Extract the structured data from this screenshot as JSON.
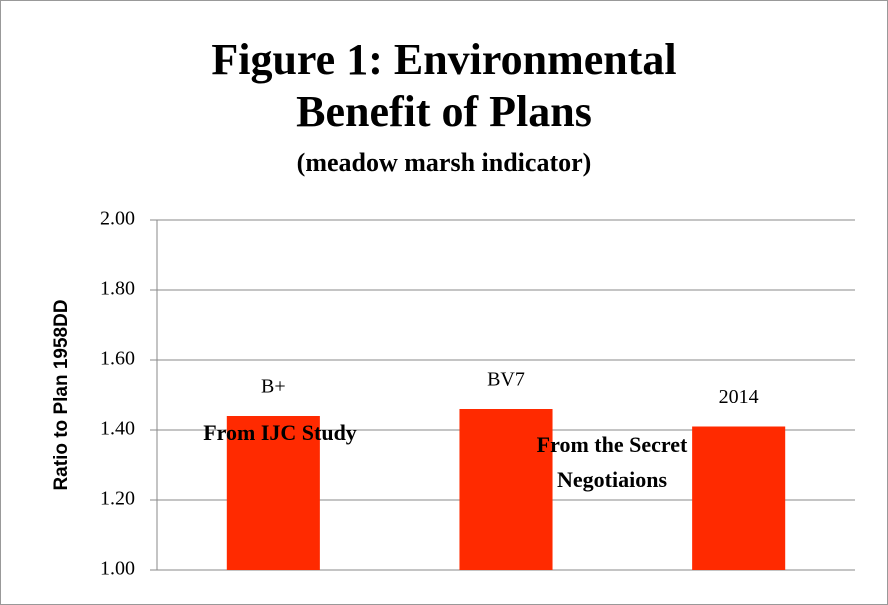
{
  "chart_data": {
    "type": "bar",
    "title": [
      "Figure 1: Environmental",
      "Benefit of Plans"
    ],
    "subtitle": "(meadow marsh indicator)",
    "y_label": "Ratio to Plan 1958DD",
    "categories": [
      "B+",
      "BV7",
      "2014"
    ],
    "values": [
      1.44,
      1.46,
      1.41
    ],
    "color": "#ff2a00",
    "ylim": [
      1.0,
      2.0
    ],
    "yticks": [
      {
        "value": 1.0,
        "label": "1.00"
      },
      {
        "value": 1.2,
        "label": "1.20"
      },
      {
        "value": 1.4,
        "label": "1.40"
      },
      {
        "value": 1.6,
        "label": "1.60"
      },
      {
        "value": 1.8,
        "label": "1.80"
      },
      {
        "value": 2.0,
        "label": "2.00"
      }
    ],
    "grid": true,
    "annotations": [
      "From IJC Study",
      "From the Secret",
      "Negotiaions"
    ]
  }
}
